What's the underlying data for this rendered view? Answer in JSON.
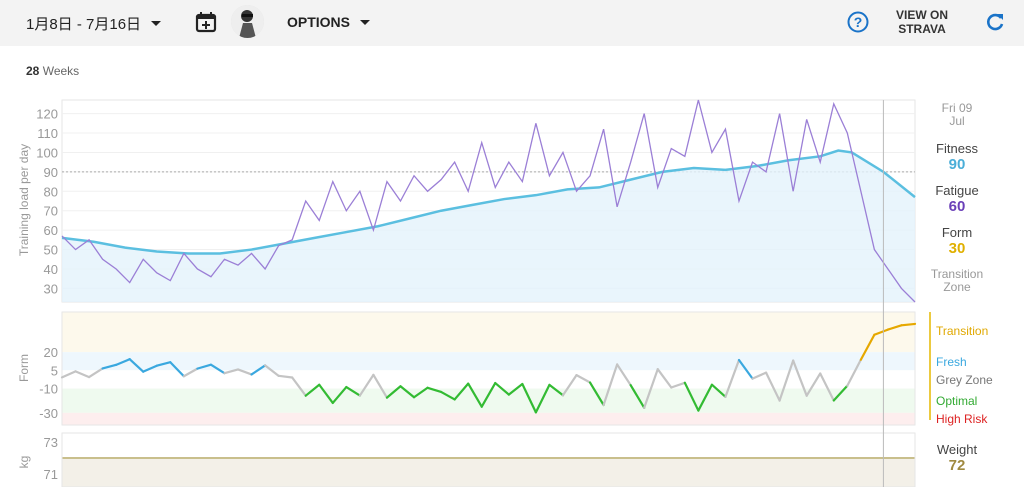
{
  "toolbar": {
    "date_range": "1月8日 - 7月16日",
    "options_label": "OPTIONS",
    "view_on_strava": "VIEW ON STRAVA",
    "view_line1": "VIEW ON",
    "view_line2": "STRAVA"
  },
  "summary": {
    "weeks_count": "28",
    "weeks_label": "Weeks"
  },
  "tooltip": {
    "date_line1": "Fri 09",
    "date_line2": "Jul",
    "fitness_label": "Fitness",
    "fitness_value": "90",
    "fatigue_label": "Fatigue",
    "fatigue_value": "60",
    "form_label": "Form",
    "form_value": "30",
    "zone_line1": "Transition",
    "zone_line2": "Zone",
    "weight_label": "Weight",
    "weight_value": "72"
  },
  "colors": {
    "fitness": "#5bbfe0",
    "fatigue": "#9b7fd6",
    "form": "#e6b800",
    "transition": "#e6a800",
    "fresh": "#3aa8df",
    "grey": "#999999",
    "optimal": "#33bb33",
    "high_risk": "#dd2222",
    "weight": "#a89a60"
  },
  "chart_data": [
    {
      "type": "line",
      "title": "Training load",
      "ylabel": "Training load per day",
      "ylim": [
        23,
        127
      ],
      "yticks": [
        30,
        40,
        50,
        60,
        70,
        80,
        90,
        100,
        110,
        120
      ],
      "days_range": [
        0,
        189
      ],
      "marker_day": 182,
      "reference_line": 90,
      "fitness_days": [
        0,
        7,
        14,
        21,
        28,
        35,
        42,
        49,
        56,
        63,
        70,
        77,
        84,
        91,
        98,
        105,
        112,
        119,
        126,
        133,
        140,
        147,
        154,
        161,
        168,
        172,
        175,
        182,
        189
      ],
      "fitness": [
        56,
        54,
        51,
        49,
        48,
        48,
        50,
        53,
        56,
        59,
        62,
        66,
        70,
        73,
        76,
        78,
        81,
        82,
        86,
        90,
        92,
        91,
        93,
        96,
        98,
        101,
        100,
        90,
        77
      ],
      "fatigue_step_days": 3,
      "fatigue": [
        57,
        50,
        55,
        45,
        40,
        33,
        45,
        38,
        34,
        48,
        40,
        36,
        45,
        42,
        48,
        40,
        52,
        55,
        75,
        65,
        85,
        70,
        80,
        60,
        85,
        75,
        88,
        80,
        86,
        95,
        80,
        105,
        82,
        95,
        85,
        115,
        88,
        100,
        80,
        88,
        112,
        72,
        95,
        120,
        82,
        102,
        98,
        127,
        100,
        112,
        75,
        95,
        90,
        120,
        80,
        117,
        95,
        125,
        110,
        80,
        50,
        40,
        30,
        23
      ]
    },
    {
      "type": "line",
      "title": "Form",
      "ylabel": "Form",
      "yticks": [
        20,
        5,
        -10,
        -30
      ],
      "zones": [
        {
          "name": "Transition",
          "min": 20
        },
        {
          "name": "Fresh",
          "min": 5,
          "max": 20
        },
        {
          "name": "Grey Zone",
          "min": -10,
          "max": 5
        },
        {
          "name": "Optimal",
          "min": -30,
          "max": -10
        },
        {
          "name": "High Risk",
          "max": -30
        }
      ]
    },
    {
      "type": "line",
      "title": "Weight",
      "ylabel": "kg",
      "yticks": [
        73,
        71
      ],
      "values": [
        72
      ]
    }
  ],
  "legend": {
    "transition": "Transition",
    "fresh": "Fresh",
    "grey": "Grey Zone",
    "optimal": "Optimal",
    "high_risk": "High Risk"
  }
}
